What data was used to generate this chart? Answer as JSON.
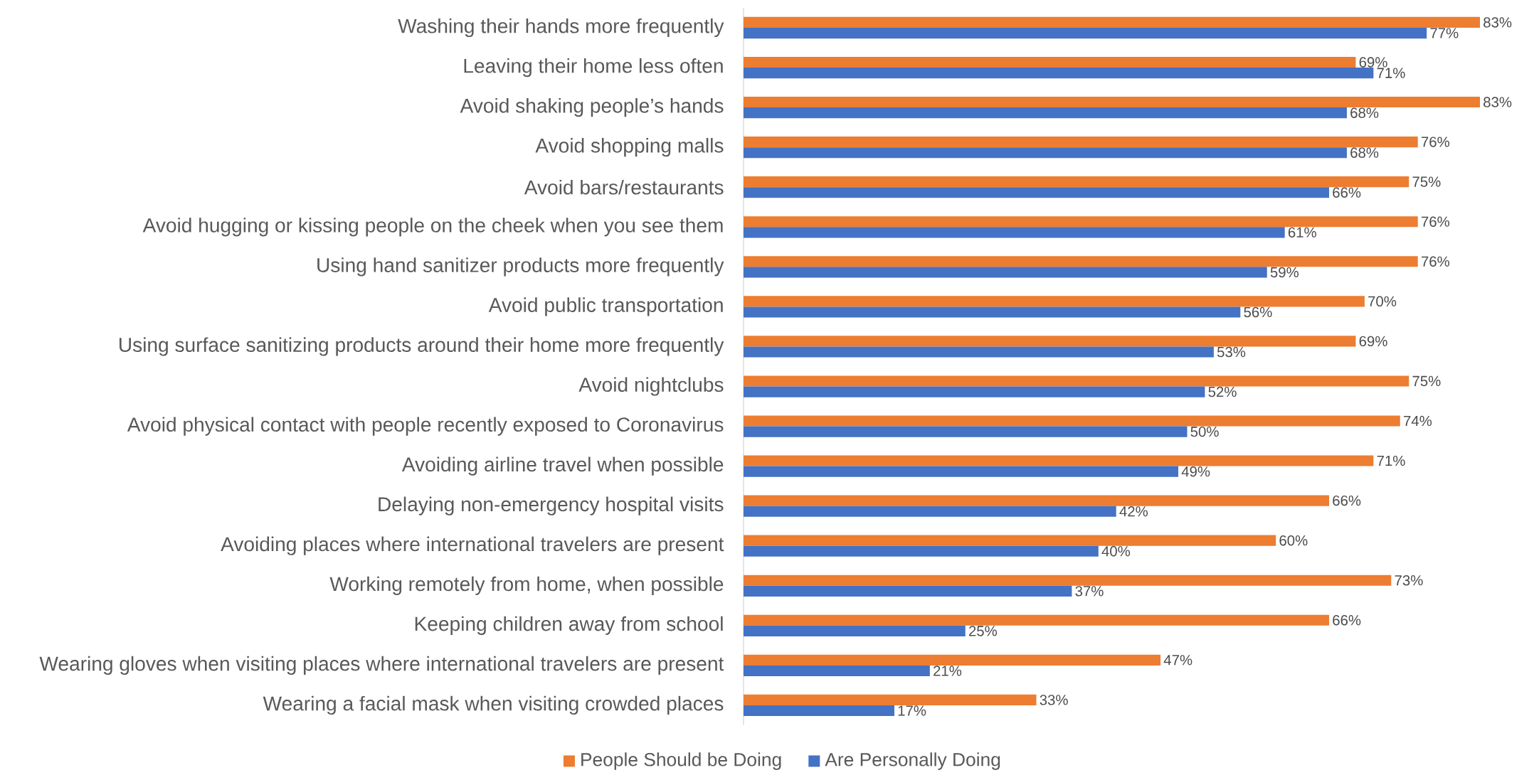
{
  "chart_data": {
    "type": "bar",
    "orientation": "horizontal",
    "legend": "bottom",
    "categories": [
      "Washing their hands more frequently",
      "Leaving their home less often",
      "Avoid shaking people’s hands",
      "Avoid shopping malls",
      "Avoid bars/restaurants",
      "Avoid hugging or kissing people on the cheek when you see them",
      "Using hand sanitizer products more frequently",
      "Avoid public transportation",
      "Using surface sanitizing products around their home more frequently",
      "Avoid nightclubs",
      "Avoid physical contact with people recently exposed to Coronavirus",
      "Avoiding airline travel when possible",
      "Delaying non-emergency hospital visits",
      "Avoiding places where international travelers are present",
      "Working remotely from home, when possible",
      "Keeping children away from school",
      "Wearing gloves when visiting places where international travelers are present",
      "Wearing a facial mask when visiting crowded places"
    ],
    "series": [
      {
        "name": "People Should be Doing",
        "color": "#ed7d31",
        "values": [
          83,
          69,
          83,
          76,
          75,
          76,
          76,
          70,
          69,
          75,
          74,
          71,
          66,
          60,
          73,
          66,
          47,
          33
        ],
        "value_labels": [
          "83%",
          "69%",
          "83%",
          "76%",
          "75%",
          "76%",
          "76%",
          "70%",
          "69%",
          "75%",
          "74%",
          "71%",
          "66%",
          "60%",
          "73%",
          "66%",
          "47%",
          "33%"
        ]
      },
      {
        "name": "Are Personally Doing",
        "color": "#4472c4",
        "values": [
          77,
          71,
          68,
          68,
          66,
          61,
          59,
          56,
          53,
          52,
          50,
          49,
          42,
          40,
          37,
          25,
          21,
          17
        ],
        "value_labels": [
          "77%",
          "71%",
          "68%",
          "68%",
          "66%",
          "61%",
          "59%",
          "56%",
          "53%",
          "52%",
          "50%",
          "49%",
          "42%",
          "40%",
          "37%",
          "25%",
          "21%",
          "17%"
        ]
      }
    ]
  }
}
